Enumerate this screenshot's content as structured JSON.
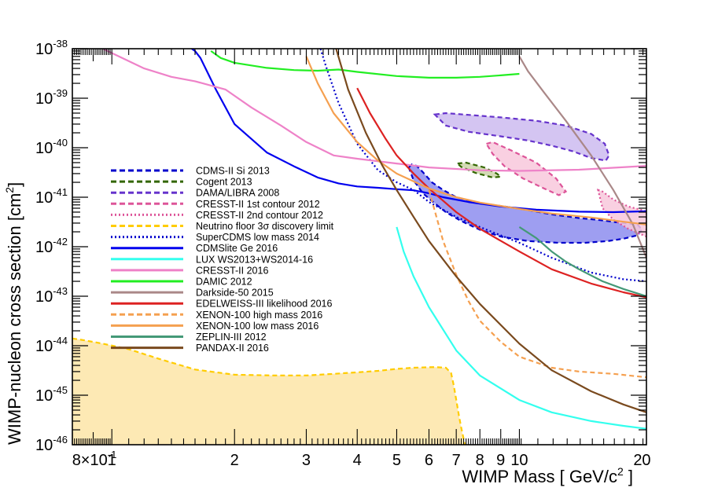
{
  "chart_data": {
    "type": "line",
    "title": "",
    "xlabel": "WIMP Mass [ GeV/c^2 ]",
    "ylabel": "WIMP-nucleon cross section [cm^2]",
    "xscale": "log",
    "yscale": "log",
    "xlim": [
      0.8,
      20.5
    ],
    "ylim": [
      1e-46,
      1e-38
    ],
    "x_ticks": [
      {
        "value": 0.8,
        "base": "8×10",
        "exp": "-1"
      },
      {
        "value": 1,
        "text": "1"
      },
      {
        "value": 2,
        "text": "2"
      },
      {
        "value": 3,
        "text": "3"
      },
      {
        "value": 4,
        "text": "4"
      },
      {
        "value": 5,
        "text": "5"
      },
      {
        "value": 6,
        "text": "6"
      },
      {
        "value": 7,
        "text": "7"
      },
      {
        "value": 8,
        "text": "8"
      },
      {
        "value": 9,
        "text": "9"
      },
      {
        "value": 10,
        "text": "10"
      },
      {
        "value": 20,
        "text": "20"
      }
    ],
    "y_ticks": [
      {
        "value": 1e-38,
        "base": "10",
        "exp": "-38"
      },
      {
        "value": 1e-39,
        "base": "10",
        "exp": "-39"
      },
      {
        "value": 1e-40,
        "base": "10",
        "exp": "-40"
      },
      {
        "value": 1e-41,
        "base": "10",
        "exp": "-41"
      },
      {
        "value": 1e-42,
        "base": "10",
        "exp": "-42"
      },
      {
        "value": 1e-43,
        "base": "10",
        "exp": "-43"
      },
      {
        "value": 1e-44,
        "base": "10",
        "exp": "-44"
      },
      {
        "value": 1e-45,
        "base": "10",
        "exp": "-45"
      },
      {
        "value": 1e-46,
        "base": "10",
        "exp": "-46"
      }
    ],
    "legend": {
      "position": "center-left",
      "entries": [
        {
          "label": "CDMS-II Si 2013",
          "color": "#0000cc",
          "style": "dashed"
        },
        {
          "label": "Cogent 2013",
          "color": "#336600",
          "style": "dashed"
        },
        {
          "label": "DAMA/LIBRA 2008",
          "color": "#6633cc",
          "style": "dashed"
        },
        {
          "label": "CRESST-II 1st contour 2012",
          "color": "#dd5599",
          "style": "dashed"
        },
        {
          "label": "CRESST-II 2nd contour 2012",
          "color": "#dd5599",
          "style": "dotted"
        },
        {
          "label": "Neutrino floor 3σ discovery limit",
          "color": "#ffcc00",
          "style": "dashed"
        },
        {
          "label": "SuperCDMS low mass 2014",
          "color": "#0000cc",
          "style": "dotted"
        },
        {
          "label": "CDMSlite Ge 2016",
          "color": "#0000ee",
          "style": "solid"
        },
        {
          "label": "LUX WS2013+WS2014-16",
          "color": "#33ffee",
          "style": "solid"
        },
        {
          "label": "CRESST-II 2016",
          "color": "#ee82c8",
          "style": "solid"
        },
        {
          "label": "DAMIC 2012",
          "color": "#22ee22",
          "style": "solid"
        },
        {
          "label": "Darkside-50 2015",
          "color": "#aa8888",
          "style": "solid"
        },
        {
          "label": "EDELWEISS-III likelihood 2016",
          "color": "#dd2222",
          "style": "solid"
        },
        {
          "label": "XENON-100 high mass 2016",
          "color": "#f5a050",
          "style": "dashed"
        },
        {
          "label": "XENON-100 low mass 2016",
          "color": "#f5a050",
          "style": "solid"
        },
        {
          "label": "ZEPLIN-III 2012",
          "color": "#449977",
          "style": "solid"
        },
        {
          "label": "PANDAX-II 2016",
          "color": "#7a4a1e",
          "style": "solid"
        }
      ]
    },
    "series": [
      {
        "name": "Neutrino floor 3σ discovery limit",
        "kind": "fill",
        "color": "#ffcc00",
        "fill": "#fde9b4",
        "style": "dashed",
        "x": [
          0.8,
          0.85,
          0.95,
          1.1,
          1.3,
          1.6,
          2.0,
          2.5,
          3.0,
          3.5,
          4.0,
          4.5,
          5.0,
          5.5,
          6.2,
          6.6,
          6.8,
          6.9,
          7.0,
          7.1,
          7.2,
          7.3,
          7.35
        ],
        "y": [
          1.4e-44,
          1.3e-44,
          1.1e-44,
          8.5e-45,
          5.5e-45,
          3.3e-45,
          2.6e-45,
          2.5e-45,
          2.5e-45,
          2.7e-45,
          2.9e-45,
          3.1e-45,
          3.4e-45,
          3.6e-45,
          3.7e-45,
          3.6e-45,
          2.8e-45,
          1.6e-45,
          8e-46,
          4e-46,
          2.2e-46,
          1.3e-46,
          1e-46
        ]
      },
      {
        "name": "CDMS-II Si 2013",
        "kind": "region",
        "color": "#0000cc",
        "fill": "#8d8dee",
        "style": "dashed",
        "x": [
          5.35,
          5.45,
          5.6,
          5.8,
          6.1,
          6.5,
          7.0,
          7.8,
          8.6,
          9.2,
          10.5,
          12.0,
          14.0,
          16.0,
          18.0,
          19.5,
          20.0,
          19.5,
          18.0,
          16.5,
          14.5,
          12.5,
          10.5,
          9.0,
          8.0,
          7.2,
          6.6,
          6.2,
          5.8,
          5.5,
          5.35
        ],
        "y": [
          4e-41,
          4.6e-41,
          4.3e-41,
          3.2e-41,
          2e-41,
          1.4e-41,
          1e-41,
          8e-42,
          7e-42,
          6.5e-42,
          5.5e-42,
          4.5e-42,
          3.8e-42,
          3.4e-42,
          3e-42,
          2.8e-42,
          2.2e-42,
          1.7e-42,
          1.45e-42,
          1.3e-42,
          1.2e-42,
          1.2e-42,
          1.3e-42,
          1.6e-42,
          2.2e-42,
          3.3e-42,
          5e-42,
          7.5e-42,
          1.2e-41,
          2.2e-41,
          4e-41
        ]
      },
      {
        "name": "DAMA/LIBRA 2008",
        "kind": "region",
        "color": "#6633cc",
        "fill": "#ccbbf0",
        "style": "dashed",
        "x": [
          6.2,
          6.6,
          7.5,
          9.0,
          11.0,
          13.0,
          15.0,
          16.2,
          16.6,
          16.3,
          15.0,
          13.5,
          12.0,
          10.5,
          9.0,
          7.5,
          6.6,
          6.2
        ],
        "y": [
          4.7e-40,
          5e-40,
          4.6e-40,
          4.1e-40,
          3.5e-40,
          2.8e-40,
          1.9e-40,
          1.2e-40,
          7e-41,
          5.5e-41,
          6.2e-41,
          8.5e-41,
          1.1e-40,
          1.4e-40,
          1.7e-40,
          2.1e-40,
          2.8e-40,
          4.7e-40
        ]
      },
      {
        "name": "CRESST-II 1st contour 2012",
        "kind": "region",
        "color": "#dd5599",
        "fill": "#f8c8dc",
        "style": "dashed",
        "x": [
          8.3,
          8.6,
          9.5,
          11.0,
          12.3,
          13.0,
          12.5,
          11.5,
          10.2,
          9.2,
          8.6,
          8.3
        ],
        "y": [
          1.2e-40,
          1.3e-40,
          9e-41,
          5e-41,
          2.4e-41,
          1.3e-41,
          1.1e-41,
          1.5e-41,
          2.4e-41,
          4.2e-41,
          7.5e-41,
          1.2e-40
        ]
      },
      {
        "name": "CRESST-II 2nd contour 2012",
        "kind": "region",
        "color": "#dd5599",
        "fill": "#f8c8dc",
        "style": "dotted",
        "x": [
          15.6,
          16.0,
          17.0,
          18.5,
          20.5,
          20.5,
          18.5,
          17.0,
          16.0,
          15.6
        ],
        "y": [
          1.4e-41,
          1.3e-41,
          9e-42,
          6.5e-42,
          5.2e-42,
          1.6e-42,
          2.3e-42,
          3.5e-42,
          6e-42,
          1.4e-41
        ]
      },
      {
        "name": "Cogent 2013",
        "kind": "region",
        "color": "#336600",
        "fill": "#ccd4a8",
        "style": "dashed",
        "x": [
          7.05,
          7.4,
          8.2,
          8.8,
          9.0,
          8.6,
          7.8,
          7.2,
          7.05
        ],
        "y": [
          4.8e-41,
          5e-41,
          4e-41,
          3e-41,
          2.6e-41,
          2.5e-41,
          3.1e-41,
          4.1e-41,
          4.8e-41
        ]
      },
      {
        "name": "SuperCDMS low mass 2014",
        "kind": "line",
        "color": "#0000cc",
        "style": "dotted",
        "x": [
          3.25,
          3.35,
          3.6,
          4.0,
          4.5,
          5.0,
          5.5,
          6.0,
          7.0,
          8.0,
          10.0,
          12.0,
          15.0,
          18.0,
          20.5
        ],
        "y": [
          1e-38,
          4.5e-39,
          8e-40,
          1.2e-40,
          3.5e-41,
          2e-41,
          1.4e-41,
          8e-42,
          4e-42,
          2.5e-42,
          1.2e-42,
          6e-43,
          3e-43,
          2.2e-43,
          2e-43
        ]
      },
      {
        "name": "CDMSlite Ge 2016",
        "kind": "line",
        "color": "#0000ee",
        "style": "solid",
        "x": [
          1.57,
          1.6,
          1.65,
          1.8,
          2.0,
          2.4,
          2.8,
          3.2,
          3.6,
          4.0,
          4.5,
          5.0,
          5.5,
          6.0,
          6.5,
          7.5,
          9.0,
          11.0,
          14.0,
          17.0,
          20.5
        ],
        "y": [
          1e-38,
          9e-39,
          6.5e-39,
          1.5e-39,
          3e-40,
          8e-41,
          4.2e-41,
          2.5e-41,
          1.9e-41,
          1.65e-41,
          1.55e-41,
          1.45e-41,
          1.38e-41,
          1.2e-41,
          1e-41,
          8e-42,
          6.5e-42,
          5.6e-42,
          5.1e-42,
          5e-42,
          5.2e-42
        ]
      },
      {
        "name": "LUX WS2013+WS2014-16",
        "kind": "line",
        "color": "#33ffee",
        "style": "solid",
        "x": [
          5.0,
          5.2,
          5.5,
          6.0,
          7.0,
          8.0,
          10.0,
          12.0,
          15.0,
          18.0,
          20.5
        ],
        "y": [
          2.5e-42,
          8e-43,
          2.5e-43,
          6e-44,
          8e-45,
          2.5e-45,
          8e-46,
          4.5e-46,
          3e-46,
          2.4e-46,
          2.1e-46
        ]
      },
      {
        "name": "CRESST-II 2016",
        "kind": "line",
        "color": "#ee82c8",
        "style": "solid",
        "x": [
          0.95,
          1.2,
          1.4,
          1.6,
          1.9,
          2.2,
          2.6,
          3.0,
          3.5,
          4.0,
          5.0,
          6.0,
          8.0,
          10.0,
          14.0,
          20.5
        ],
        "y": [
          1e-38,
          4e-39,
          2.7e-39,
          2.2e-39,
          1.5e-39,
          6.5e-40,
          2.8e-40,
          1.3e-40,
          7e-41,
          6e-41,
          4.8e-41,
          4e-41,
          3.5e-41,
          3.4e-41,
          3.6e-41,
          4.3e-41
        ]
      },
      {
        "name": "DAMIC 2012",
        "kind": "line",
        "color": "#22ee22",
        "style": "solid",
        "x": [
          1.75,
          1.85,
          2.0,
          2.4,
          2.8,
          3.2,
          3.6,
          4.0,
          5.0,
          6.0,
          7.0,
          8.0,
          9.0,
          10.0
        ],
        "y": [
          9e-39,
          6.5e-39,
          5.2e-39,
          4.1e-39,
          3.7e-39,
          3.6e-39,
          3.8e-39,
          3.4e-39,
          2.8e-39,
          2.6e-39,
          2.6e-39,
          2.7e-39,
          2.9e-39,
          3.1e-39
        ]
      },
      {
        "name": "Darkside-50 2015",
        "kind": "line",
        "color": "#aa8888",
        "style": "solid",
        "x": [
          10.0,
          10.5,
          11.5,
          13.0,
          15.0,
          17.0,
          19.0,
          20.5
        ],
        "y": [
          7e-39,
          3.5e-39,
          1.3e-39,
          3.5e-40,
          7e-41,
          1.4e-41,
          2.8e-42,
          6e-43
        ]
      },
      {
        "name": "EDELWEISS-III likelihood 2016",
        "kind": "line",
        "color": "#dd2222",
        "style": "solid",
        "x": [
          4.0,
          4.3,
          4.7,
          5.0,
          5.5,
          6.0,
          7.0,
          8.0,
          10.0,
          12.0,
          15.0,
          18.0,
          20.5
        ],
        "y": [
          1.6e-39,
          5e-40,
          1.5e-40,
          7e-41,
          3e-41,
          1.5e-41,
          5e-42,
          2.3e-42,
          8e-43,
          3.5e-43,
          1.8e-43,
          1.2e-43,
          9.5e-44
        ]
      },
      {
        "name": "XENON-100 high mass 2016",
        "kind": "line",
        "color": "#f5a050",
        "style": "dashed",
        "x": [
          6.0,
          6.5,
          7.0,
          7.5,
          8.0,
          9.0,
          10.0,
          12.0,
          14.0,
          17.0,
          20.5
        ],
        "y": [
          1.4e-41,
          1.3e-42,
          2.7e-43,
          8e-44,
          3.2e-44,
          1.2e-44,
          6e-45,
          3.6e-45,
          3e-45,
          2.7e-45,
          2.3e-45
        ]
      },
      {
        "name": "XENON-100 low mass 2016",
        "kind": "line",
        "color": "#f5a050",
        "style": "solid",
        "x": [
          3.0,
          3.2,
          3.5,
          4.0,
          4.5,
          5.0,
          6.0,
          7.0,
          8.0,
          10.0,
          12.0,
          15.0,
          18.0,
          20.5
        ],
        "y": [
          7e-39,
          2e-39,
          5e-40,
          1.3e-40,
          5.5e-41,
          3e-41,
          1.5e-41,
          1e-41,
          7.8e-42,
          5.8e-42,
          4.7e-42,
          3.9e-42,
          3.2e-42,
          2.8e-42
        ]
      },
      {
        "name": "ZEPLIN-III 2012",
        "kind": "line",
        "color": "#449977",
        "style": "solid",
        "x": [
          10.0,
          11.0,
          12.0,
          13.0,
          14.0,
          16.0,
          18.0,
          20.5
        ],
        "y": [
          2.5e-42,
          1.5e-42,
          8e-43,
          5e-43,
          3.5e-43,
          2e-43,
          1.4e-43,
          1e-43
        ]
      },
      {
        "name": "PANDAX-II 2016",
        "kind": "line",
        "color": "#7a4a1e",
        "style": "solid",
        "x": [
          3.55,
          3.8,
          4.2,
          4.6,
          5.0,
          5.5,
          6.0,
          7.0,
          8.0,
          10.0,
          12.0,
          15.0,
          18.0,
          20.5
        ],
        "y": [
          1e-38,
          1.5e-39,
          2e-40,
          4.5e-41,
          1.4e-41,
          4e-42,
          1.3e-42,
          2.5e-43,
          7e-44,
          1.1e-44,
          3.2e-45,
          1.2e-45,
          6.5e-46,
          4.5e-46
        ]
      }
    ]
  }
}
